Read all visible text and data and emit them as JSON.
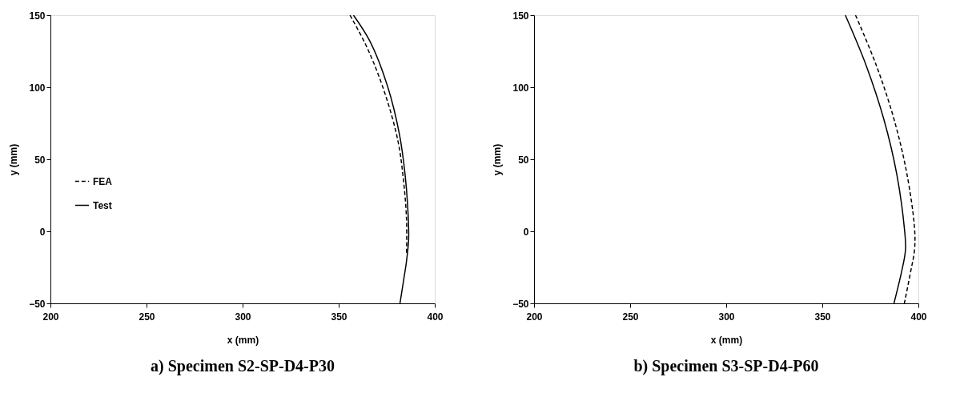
{
  "chart_data": [
    {
      "type": "line",
      "title": "a) Specimen S2-SP-D4-P30",
      "xlabel": "x (mm)",
      "ylabel": "y (mm)",
      "xlim": [
        200,
        400
      ],
      "ylim": [
        -50,
        150
      ],
      "xticks": [
        200,
        250,
        300,
        350,
        400
      ],
      "yticks": [
        -50,
        0,
        50,
        100,
        150
      ],
      "grid": false,
      "legend": "left",
      "series": [
        {
          "name": "FEA",
          "color": "#000000",
          "line_style": "dashed",
          "x": [
            355.9,
            365,
            374,
            380.8,
            383.8,
            385.3,
            385.3
          ],
          "values": [
            150,
            126.9,
            96,
            63,
            34.4,
            7.9,
            -16.3
          ]
        },
        {
          "name": "Test",
          "color": "#000000",
          "line_style": "solid",
          "x": [
            357.7,
            366.5,
            375.5,
            381.6,
            384.6,
            386.1,
            386.4,
            385.3,
            383.8,
            381.9
          ],
          "values": [
            150,
            131.3,
            100.4,
            67.4,
            38.8,
            12.3,
            -5.3,
            -20.7,
            -33.9,
            -50
          ]
        }
      ]
    },
    {
      "type": "line",
      "title": "b) Specimen S3-SP-D4-P60",
      "xlabel": "x (mm)",
      "ylabel": "y (mm)",
      "xlim": [
        200,
        400
      ],
      "ylim": [
        -50,
        150
      ],
      "xticks": [
        200,
        250,
        300,
        350,
        400
      ],
      "yticks": [
        -50,
        0,
        50,
        100,
        150
      ],
      "grid": false,
      "legend": "left",
      "series": [
        {
          "name": "FEA",
          "color": "#000000",
          "line_style": "dashed",
          "x": [
            367.3,
            378,
            387.3,
            394,
            398,
            398,
            396,
            392.7
          ],
          "values": [
            150,
            115.6,
            77.9,
            40.1,
            2.3,
            -12.8,
            -27.9,
            -50
          ]
        },
        {
          "name": "Test",
          "color": "#000000",
          "line_style": "solid",
          "x": [
            362,
            372.7,
            382,
            388.7,
            392.7,
            393.3,
            391.3,
            387.3
          ],
          "values": [
            150,
            115.6,
            77.9,
            40.1,
            2.3,
            -12.8,
            -27.9,
            -50
          ]
        }
      ]
    }
  ]
}
